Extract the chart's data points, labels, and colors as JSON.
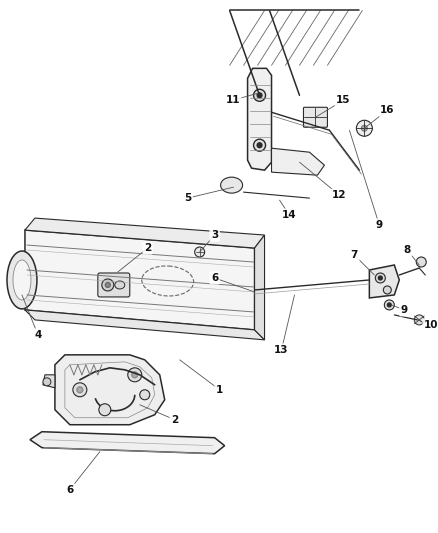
{
  "bg_color": "#ffffff",
  "line_color": "#2a2a2a",
  "label_color": "#111111",
  "label_fontsize": 7.5,
  "fig_width": 4.39,
  "fig_height": 5.33,
  "dpi": 100
}
